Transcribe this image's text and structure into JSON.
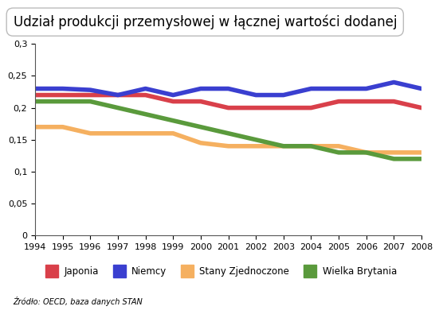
{
  "chart_data": {
    "type": "line",
    "title": "Udział produkcji przemysłowej w łącznej wartości dodanej",
    "annotations": [
      "Źródło: OECD, baza danych STAN"
    ],
    "x": [
      1994,
      1995,
      1996,
      1997,
      1998,
      1999,
      2000,
      2001,
      2002,
      2003,
      2004,
      2005,
      2006,
      2007,
      2008
    ],
    "xlim": [
      1994,
      2008
    ],
    "xticks": [
      1994,
      1995,
      1996,
      1997,
      1998,
      1999,
      2000,
      2001,
      2002,
      2003,
      2004,
      2005,
      2006,
      2007,
      2008
    ],
    "ylim": [
      0,
      0.3
    ],
    "yticks": [
      0,
      {
        "value": 0.05,
        "label": "0,05"
      },
      {
        "value": 0.1,
        "label": "0,1"
      },
      {
        "value": 0.15,
        "label": "0,15"
      },
      {
        "value": 0.2,
        "label": "0,2"
      },
      {
        "value": 0.25,
        "label": "0,25"
      },
      {
        "value": 0.3,
        "label": "0,3"
      }
    ],
    "grid": false,
    "legend": "bottom",
    "series": [
      {
        "name": "Japonia",
        "color": "#d9404a",
        "values": [
          0.22,
          0.22,
          0.22,
          0.22,
          0.22,
          0.21,
          0.21,
          0.2,
          0.2,
          0.2,
          0.2,
          0.21,
          0.21,
          0.21,
          0.2
        ]
      },
      {
        "name": "Niemcy",
        "color": "#3a3fd0",
        "values": [
          0.23,
          0.23,
          0.228,
          0.22,
          0.23,
          0.22,
          0.23,
          0.23,
          0.22,
          0.22,
          0.23,
          0.23,
          0.23,
          0.24,
          0.23
        ]
      },
      {
        "name": "Stany Zjednoczone",
        "color": "#f5b060",
        "values": [
          0.17,
          0.17,
          0.16,
          0.16,
          0.16,
          0.16,
          0.145,
          0.14,
          0.14,
          0.14,
          0.14,
          0.14,
          0.13,
          0.13,
          0.13
        ]
      },
      {
        "name": "Wielka Brytania",
        "color": "#5a9a3c",
        "values": [
          0.21,
          0.21,
          0.21,
          0.2,
          0.19,
          0.18,
          0.17,
          0.16,
          0.15,
          0.14,
          0.14,
          0.13,
          0.13,
          0.12,
          0.12
        ]
      }
    ]
  }
}
